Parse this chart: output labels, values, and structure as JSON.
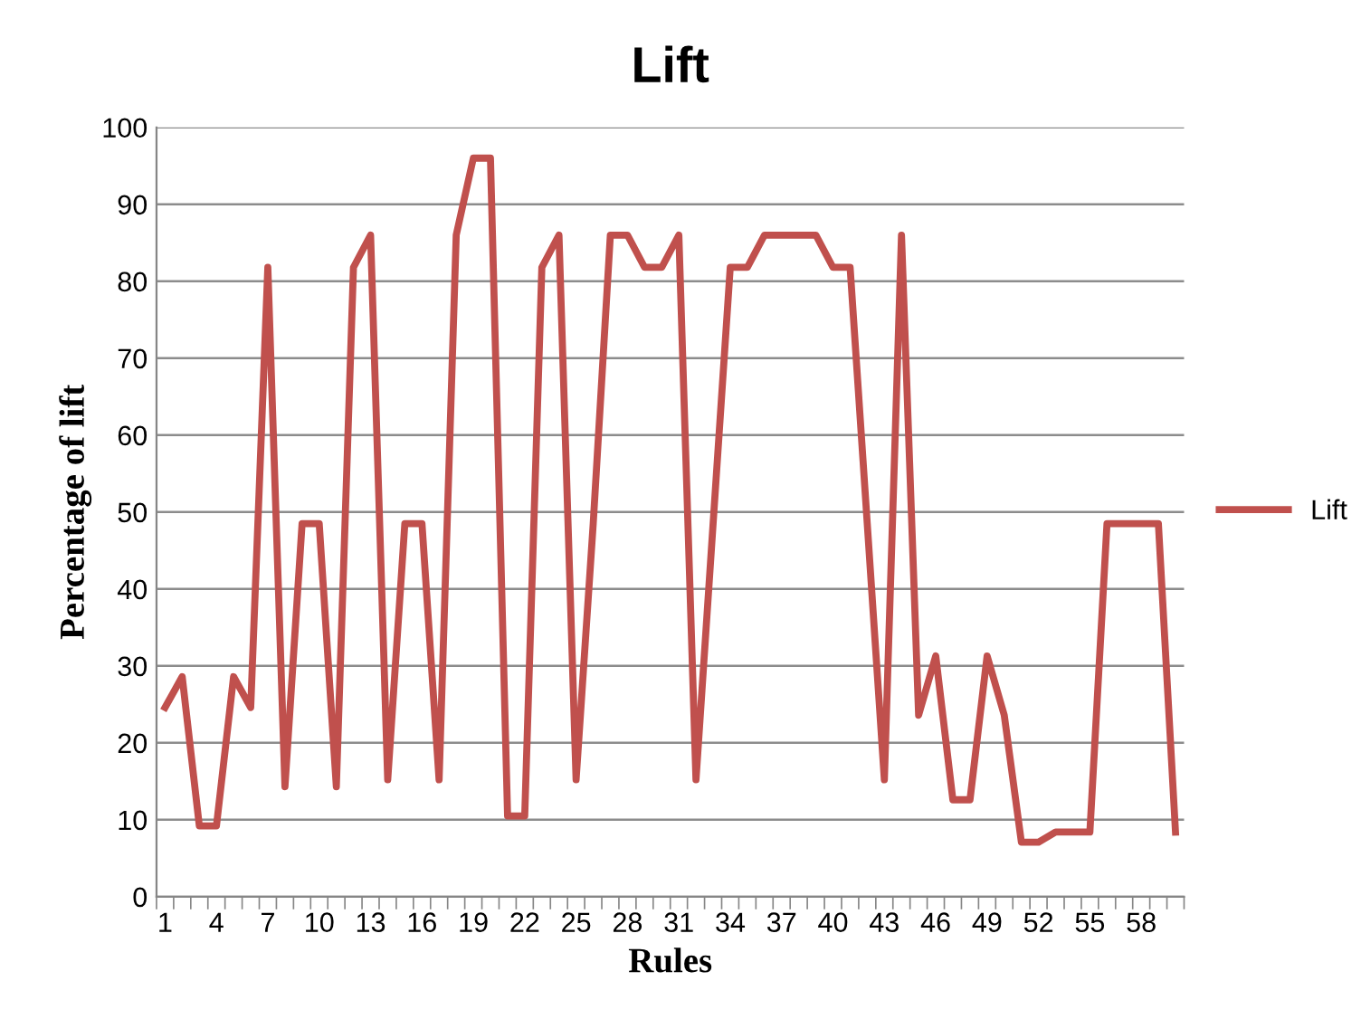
{
  "chart_data": {
    "type": "line",
    "title": "Lift",
    "xlabel": "Rules",
    "ylabel": "Percentage of lift",
    "categories": [
      "1",
      null,
      null,
      "4",
      null,
      null,
      "7",
      null,
      null,
      "10",
      null,
      null,
      "13",
      null,
      null,
      "16",
      null,
      null,
      "19",
      null,
      null,
      "22",
      null,
      null,
      "25",
      null,
      null,
      "28",
      null,
      null,
      "31",
      null,
      null,
      "34",
      null,
      null,
      "37",
      null,
      null,
      "40",
      null,
      null,
      "43",
      null,
      null,
      "46",
      null,
      null,
      "49",
      null,
      null,
      "52",
      null,
      null,
      "55",
      null,
      null,
      "58",
      null,
      null
    ],
    "series": [
      {
        "name": "Lift",
        "color": "#c0504d",
        "values": [
          24.6,
          28.6,
          9.2,
          9.2,
          28.6,
          24.6,
          81.8,
          14.3,
          48.5,
          48.5,
          14.3,
          81.8,
          86,
          15.2,
          48.5,
          48.5,
          15.2,
          86,
          96,
          96,
          10.5,
          10.5,
          81.8,
          86,
          15.2,
          48.5,
          86,
          86,
          81.8,
          81.8,
          86,
          15.2,
          48.5,
          81.8,
          81.8,
          86,
          86,
          86,
          86,
          81.8,
          81.8,
          48.5,
          15.2,
          86,
          23.6,
          31.3,
          12.6,
          12.6,
          31.3,
          23.6,
          7.1,
          7.1,
          8.4,
          8.4,
          8.4,
          48.5,
          48.5,
          48.5,
          48.5,
          8.4
        ]
      }
    ],
    "ylim": [
      0,
      100
    ],
    "yticks": [
      0,
      10,
      20,
      30,
      40,
      50,
      60,
      70,
      80,
      90,
      100
    ],
    "grid": "y",
    "legend": "right",
    "marker": "none",
    "line_style": "solid"
  }
}
